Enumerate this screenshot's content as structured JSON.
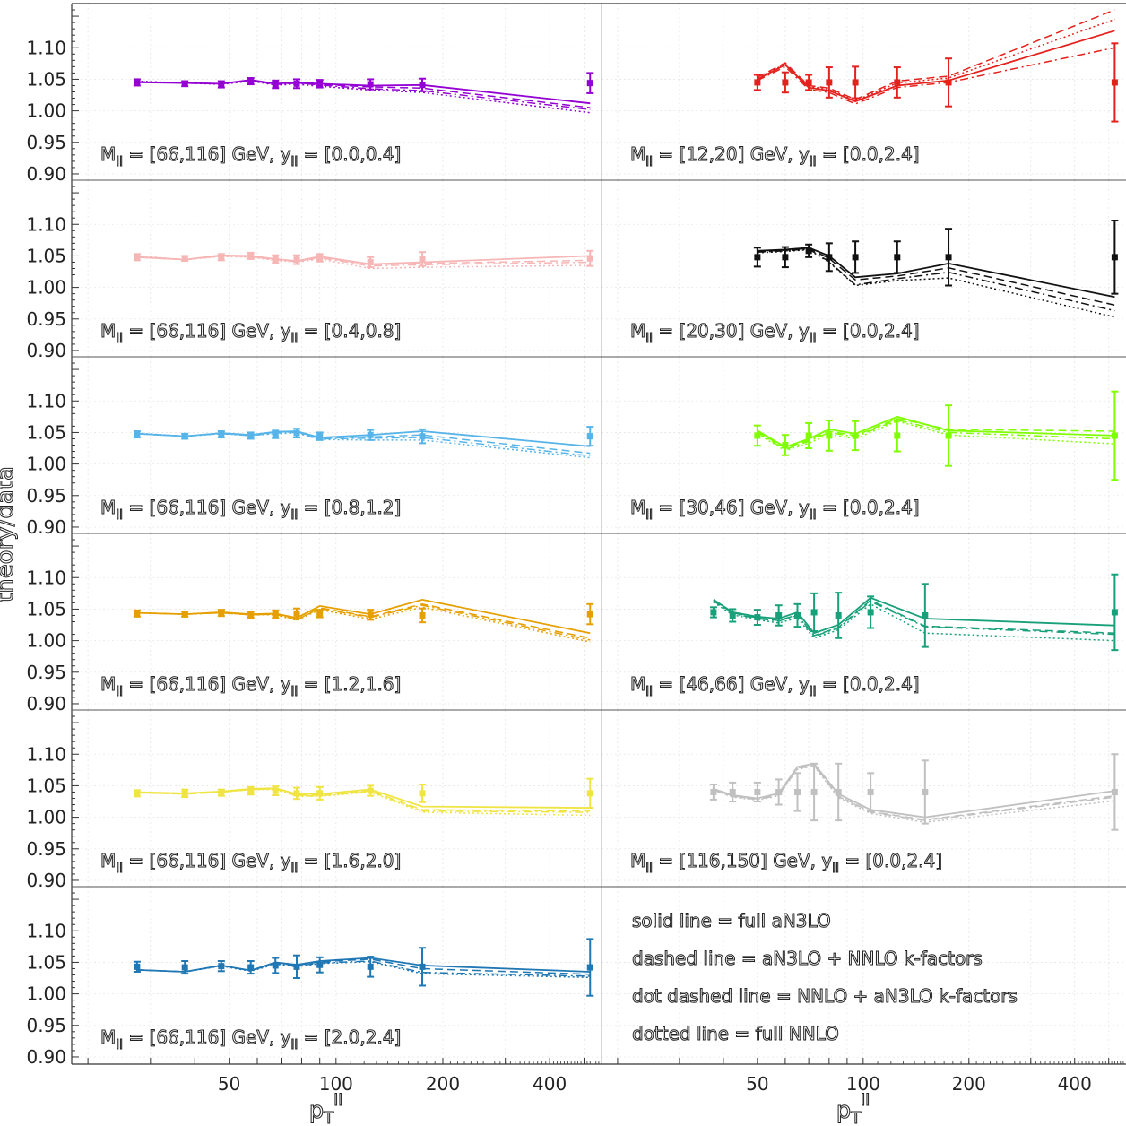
{
  "chart_data": {
    "type": "line",
    "title": "",
    "ylabel": "theory/data",
    "xlabel": "p_T^ll",
    "xlabel_main": "p",
    "xlabel_sub": "T",
    "xlabel_sup": "ll",
    "xscale": "log",
    "xlim": [
      18,
      560
    ],
    "ylim": [
      0.89,
      1.17
    ],
    "yticks": [
      "0.90",
      "0.95",
      "1.00",
      "1.05",
      "1.10"
    ],
    "xticks": [
      "50",
      "100",
      "200",
      "400"
    ],
    "grid": true,
    "legend_position": "bottom-right panel",
    "legend": [
      {
        "label": "solid line = full aN3LO",
        "style": "solid"
      },
      {
        "label": "dashed line = aN3LO + NNLO k-factors",
        "style": "dashed"
      },
      {
        "label": "dot dashed line = NNLO + aN3LO k-factors",
        "style": "dashdot"
      },
      {
        "label": "dotted line = full NNLO",
        "style": "dotted"
      }
    ],
    "panels": [
      {
        "col": 0,
        "row": 0,
        "color": "#9400d3",
        "label": "M_ll = [66,116] GeV, y_ll = [0.0,0.4]",
        "label_a": "M",
        "label_b": " = [66,116] GeV, y",
        "label_c": " = [0.0,0.4]",
        "x": [
          27.5,
          37.5,
          47.5,
          57.5,
          67.5,
          77.5,
          90,
          125,
          175,
          520
        ],
        "data": [
          1.045,
          1.043,
          1.042,
          1.047,
          1.042,
          1.043,
          1.043,
          1.042,
          1.041,
          1.044
        ],
        "err": [
          0.005,
          0.004,
          0.005,
          0.005,
          0.006,
          0.007,
          0.006,
          0.008,
          0.01,
          0.016
        ],
        "solid": [
          1.045,
          1.044,
          1.043,
          1.049,
          1.043,
          1.045,
          1.043,
          1.04,
          1.041,
          1.012
        ],
        "dashed": [
          1.046,
          1.044,
          1.043,
          1.048,
          1.042,
          1.044,
          1.042,
          1.038,
          1.036,
          1.005
        ],
        "dashdot": [
          1.046,
          1.044,
          1.043,
          1.048,
          1.042,
          1.044,
          1.041,
          1.035,
          1.032,
          1.002
        ],
        "dotted": [
          1.047,
          1.044,
          1.042,
          1.047,
          1.041,
          1.042,
          1.039,
          1.033,
          1.029,
          0.997
        ]
      },
      {
        "col": 1,
        "row": 0,
        "color": "#e4211c",
        "label": "M_ll = [12,20] GeV, y_ll = [0.0,2.4]",
        "label_a": "M",
        "label_b": " = [12,20] GeV, y",
        "label_c": " = [0.0,2.4]",
        "x": [
          50,
          60,
          70,
          80,
          95,
          125,
          175,
          520
        ],
        "data": [
          1.045,
          1.045,
          1.045,
          1.045,
          1.045,
          1.045,
          1.045,
          1.045
        ],
        "err": [
          0.012,
          0.016,
          0.012,
          0.024,
          0.025,
          0.024,
          0.038,
          0.062
        ],
        "solid": [
          1.05,
          1.073,
          1.037,
          1.032,
          1.015,
          1.04,
          1.048,
          1.127
        ],
        "dashed": [
          1.053,
          1.076,
          1.04,
          1.036,
          1.018,
          1.047,
          1.055,
          1.16
        ],
        "dashdot": [
          1.048,
          1.07,
          1.034,
          1.029,
          1.011,
          1.037,
          1.045,
          1.1
        ],
        "dotted": [
          1.052,
          1.074,
          1.039,
          1.034,
          1.016,
          1.044,
          1.052,
          1.145
        ]
      },
      {
        "col": 0,
        "row": 1,
        "color": "#f7b6b6",
        "label": "M_ll = [66,116] GeV, y_ll = [0.4,0.8]",
        "label_a": "M",
        "label_b": " = [66,116] GeV, y",
        "label_c": " = [0.4,0.8]",
        "x": [
          27.5,
          37.5,
          47.5,
          57.5,
          67.5,
          77.5,
          90,
          125,
          175,
          520
        ],
        "data": [
          1.048,
          1.046,
          1.048,
          1.05,
          1.045,
          1.044,
          1.047,
          1.04,
          1.045,
          1.046
        ],
        "err": [
          0.005,
          0.004,
          0.005,
          0.005,
          0.006,
          0.007,
          0.006,
          0.008,
          0.011,
          0.012
        ],
        "solid": [
          1.048,
          1.044,
          1.051,
          1.05,
          1.045,
          1.042,
          1.049,
          1.037,
          1.04,
          1.05
        ],
        "dashed": [
          1.049,
          1.044,
          1.05,
          1.049,
          1.044,
          1.041,
          1.048,
          1.036,
          1.038,
          1.043
        ],
        "dashdot": [
          1.049,
          1.044,
          1.05,
          1.049,
          1.044,
          1.041,
          1.047,
          1.034,
          1.036,
          1.04
        ],
        "dotted": [
          1.05,
          1.044,
          1.049,
          1.048,
          1.043,
          1.04,
          1.045,
          1.03,
          1.032,
          1.035
        ]
      },
      {
        "col": 1,
        "row": 1,
        "color": "#111111",
        "label": "M_ll = [20,30] GeV, y_ll = [0.0,2.4]",
        "label_a": "M",
        "label_b": " = [20,30] GeV, y",
        "label_c": " = [0.0,2.4]",
        "x": [
          50,
          60,
          70,
          80,
          95,
          125,
          175,
          520
        ],
        "data": [
          1.048,
          1.048,
          1.058,
          1.048,
          1.048,
          1.048,
          1.048,
          1.048
        ],
        "err": [
          0.015,
          0.016,
          0.01,
          0.022,
          0.025,
          0.025,
          0.045,
          0.058
        ],
        "solid": [
          1.058,
          1.06,
          1.063,
          1.05,
          1.016,
          1.022,
          1.038,
          0.985
        ],
        "dashed": [
          1.057,
          1.059,
          1.062,
          1.046,
          1.012,
          1.018,
          1.031,
          0.972
        ],
        "dashdot": [
          1.056,
          1.058,
          1.061,
          1.041,
          1.004,
          1.014,
          1.024,
          0.963
        ],
        "dotted": [
          1.055,
          1.057,
          1.06,
          1.04,
          1.003,
          1.011,
          1.015,
          0.953
        ]
      },
      {
        "col": 0,
        "row": 2,
        "color": "#56b4e9",
        "label": "M_ll = [66,116] GeV, y_ll = [0.8,1.2]",
        "label_a": "M",
        "label_b": " = [66,116] GeV, y",
        "label_c": " = [0.8,1.2]",
        "x": [
          27.5,
          37.5,
          47.5,
          57.5,
          67.5,
          77.5,
          90,
          125,
          175,
          520
        ],
        "data": [
          1.047,
          1.044,
          1.047,
          1.045,
          1.047,
          1.049,
          1.044,
          1.046,
          1.044,
          1.044
        ],
        "err": [
          0.005,
          0.004,
          0.005,
          0.005,
          0.006,
          0.007,
          0.006,
          0.008,
          0.011,
          0.015
        ],
        "solid": [
          1.048,
          1.044,
          1.049,
          1.046,
          1.051,
          1.052,
          1.042,
          1.046,
          1.052,
          1.028
        ],
        "dashed": [
          1.048,
          1.044,
          1.049,
          1.046,
          1.05,
          1.051,
          1.041,
          1.043,
          1.046,
          1.017
        ],
        "dashdot": [
          1.048,
          1.044,
          1.048,
          1.045,
          1.049,
          1.05,
          1.04,
          1.041,
          1.042,
          1.013
        ],
        "dotted": [
          1.049,
          1.044,
          1.048,
          1.045,
          1.048,
          1.049,
          1.039,
          1.038,
          1.038,
          1.01
        ]
      },
      {
        "col": 1,
        "row": 2,
        "color": "#7fff00",
        "label": "M_ll = [30,46] GeV, y_ll = [0.0,2.4]",
        "label_a": "M",
        "label_b": " = [30,46] GeV, y",
        "label_c": " = [0.0,2.4]",
        "x": [
          50,
          60,
          70,
          80,
          95,
          125,
          175,
          520
        ],
        "data": [
          1.045,
          1.03,
          1.045,
          1.045,
          1.045,
          1.045,
          1.045,
          1.045
        ],
        "err": [
          0.016,
          0.016,
          0.02,
          0.024,
          0.023,
          0.025,
          0.048,
          0.07
        ],
        "solid": [
          1.053,
          1.027,
          1.04,
          1.055,
          1.048,
          1.075,
          1.053,
          1.045
        ],
        "dashed": [
          1.052,
          1.025,
          1.038,
          1.052,
          1.045,
          1.072,
          1.055,
          1.052
        ],
        "dashdot": [
          1.05,
          1.023,
          1.036,
          1.05,
          1.043,
          1.07,
          1.05,
          1.04
        ],
        "dotted": [
          1.048,
          1.021,
          1.033,
          1.047,
          1.04,
          1.068,
          1.046,
          1.032
        ]
      },
      {
        "col": 0,
        "row": 3,
        "color": "#e69f00",
        "label": "M_ll = [66,116] GeV, y_ll = [1.2,1.6]",
        "label_a": "M",
        "label_b": " = [66,116] GeV, y",
        "label_c": " = [1.2,1.6]",
        "x": [
          27.5,
          37.5,
          47.5,
          57.5,
          67.5,
          77.5,
          90,
          125,
          175,
          520
        ],
        "data": [
          1.043,
          1.042,
          1.044,
          1.041,
          1.042,
          1.043,
          1.043,
          1.041,
          1.04,
          1.042
        ],
        "err": [
          0.005,
          0.004,
          0.005,
          0.005,
          0.006,
          0.008,
          0.006,
          0.008,
          0.011,
          0.016
        ],
        "solid": [
          1.044,
          1.042,
          1.045,
          1.042,
          1.043,
          1.036,
          1.055,
          1.042,
          1.065,
          1.012
        ],
        "dashed": [
          1.044,
          1.042,
          1.044,
          1.041,
          1.042,
          1.033,
          1.052,
          1.038,
          1.058,
          1.004
        ],
        "dashdot": [
          1.044,
          1.042,
          1.044,
          1.041,
          1.042,
          1.033,
          1.051,
          1.037,
          1.056,
          1.001
        ],
        "dotted": [
          1.044,
          1.042,
          1.044,
          1.041,
          1.041,
          1.032,
          1.049,
          1.034,
          1.053,
          0.998
        ]
      },
      {
        "col": 1,
        "row": 3,
        "color": "#17a07a",
        "label": "M_ll = [46,66] GeV, y_ll = [0.0,2.4]",
        "label_a": "M",
        "label_b": " = [46,66] GeV, y",
        "label_c": " = [0.0,2.4]",
        "x": [
          37.5,
          42.5,
          50,
          57.5,
          65,
          72.5,
          85,
          105,
          150,
          520
        ],
        "data": [
          1.045,
          1.04,
          1.037,
          1.04,
          1.04,
          1.045,
          1.04,
          1.045,
          1.04,
          1.045
        ],
        "err": [
          0.008,
          0.01,
          0.012,
          0.016,
          0.018,
          0.03,
          0.036,
          0.025,
          0.05,
          0.06
        ],
        "solid": [
          1.065,
          1.045,
          1.038,
          1.035,
          1.045,
          1.012,
          1.025,
          1.068,
          1.035,
          1.024
        ],
        "dashed": [
          1.064,
          1.044,
          1.036,
          1.032,
          1.041,
          1.008,
          1.021,
          1.064,
          1.023,
          1.012
        ],
        "dashdot": [
          1.063,
          1.043,
          1.035,
          1.031,
          1.04,
          1.007,
          1.02,
          1.062,
          1.022,
          1.01
        ],
        "dotted": [
          1.061,
          1.041,
          1.033,
          1.028,
          1.036,
          1.004,
          1.017,
          1.058,
          1.012,
          1.0
        ]
      },
      {
        "col": 0,
        "row": 4,
        "color": "#f0e442",
        "label": "M_ll = [66,116] GeV, y_ll = [1.6,2.0]",
        "label_a": "M",
        "label_b": " = [66,116] GeV, y",
        "label_c": " = [1.6,2.0]",
        "x": [
          27.5,
          37.5,
          47.5,
          57.5,
          67.5,
          77.5,
          90,
          125,
          175,
          520
        ],
        "data": [
          1.038,
          1.038,
          1.039,
          1.042,
          1.042,
          1.038,
          1.038,
          1.042,
          1.038,
          1.038
        ],
        "err": [
          0.005,
          0.006,
          0.005,
          0.006,
          0.007,
          0.009,
          0.01,
          0.008,
          0.014,
          0.023
        ],
        "solid": [
          1.04,
          1.038,
          1.041,
          1.045,
          1.046,
          1.037,
          1.037,
          1.044,
          1.017,
          1.015
        ],
        "dashed": [
          1.039,
          1.037,
          1.04,
          1.044,
          1.045,
          1.035,
          1.035,
          1.042,
          1.012,
          1.01
        ],
        "dashdot": [
          1.039,
          1.037,
          1.04,
          1.044,
          1.045,
          1.034,
          1.034,
          1.041,
          1.01,
          1.008
        ],
        "dotted": [
          1.039,
          1.037,
          1.04,
          1.044,
          1.044,
          1.033,
          1.033,
          1.04,
          1.008,
          1.003
        ]
      },
      {
        "col": 1,
        "row": 4,
        "color": "#c0c0c0",
        "label": "M_ll = [116,150] GeV, y_ll = [0.0,2.4]",
        "label_a": "M",
        "label_b": " = [116,150] GeV, y",
        "label_c": " = [0.0,2.4]",
        "x": [
          37.5,
          42.5,
          50,
          57.5,
          65,
          72.5,
          85,
          105,
          150,
          520
        ],
        "data": [
          1.04,
          1.04,
          1.04,
          1.04,
          1.04,
          1.04,
          1.04,
          1.04,
          1.04,
          1.04
        ],
        "err": [
          0.012,
          0.015,
          0.015,
          0.02,
          0.03,
          0.045,
          0.045,
          0.03,
          0.05,
          0.06
        ],
        "solid": [
          1.045,
          1.035,
          1.03,
          1.038,
          1.08,
          1.085,
          1.037,
          1.012,
          1.0,
          1.042
        ],
        "dashed": [
          1.044,
          1.034,
          1.029,
          1.036,
          1.078,
          1.083,
          1.034,
          1.009,
          0.996,
          1.034
        ],
        "dashdot": [
          1.043,
          1.033,
          1.028,
          1.035,
          1.077,
          1.082,
          1.033,
          1.008,
          0.995,
          1.032
        ],
        "dotted": [
          1.043,
          1.032,
          1.027,
          1.034,
          1.076,
          1.081,
          1.031,
          1.006,
          0.992,
          1.026
        ]
      },
      {
        "col": 0,
        "row": 5,
        "color": "#1f77b4",
        "label": "M_ll = [66,116] GeV, y_ll = [2.0,2.4]",
        "label_a": "M",
        "label_b": " = [66,116] GeV, y",
        "label_c": " = [2.0,2.4]",
        "x": [
          27.5,
          37.5,
          47.5,
          57.5,
          67.5,
          77.5,
          90,
          125,
          175,
          520
        ],
        "data": [
          1.043,
          1.042,
          1.044,
          1.042,
          1.045,
          1.043,
          1.046,
          1.043,
          1.043,
          1.042
        ],
        "err": [
          0.008,
          0.01,
          0.008,
          0.01,
          0.012,
          0.018,
          0.012,
          0.016,
          0.03,
          0.045
        ],
        "solid": [
          1.038,
          1.035,
          1.045,
          1.037,
          1.05,
          1.046,
          1.052,
          1.057,
          1.045,
          1.035
        ],
        "dashed": [
          1.038,
          1.035,
          1.045,
          1.037,
          1.049,
          1.045,
          1.051,
          1.055,
          1.04,
          1.031
        ],
        "dashdot": [
          1.038,
          1.035,
          1.045,
          1.037,
          1.048,
          1.044,
          1.049,
          1.052,
          1.034,
          1.028
        ],
        "dotted": [
          1.038,
          1.035,
          1.044,
          1.036,
          1.047,
          1.043,
          1.048,
          1.051,
          1.032,
          1.026
        ]
      }
    ]
  }
}
